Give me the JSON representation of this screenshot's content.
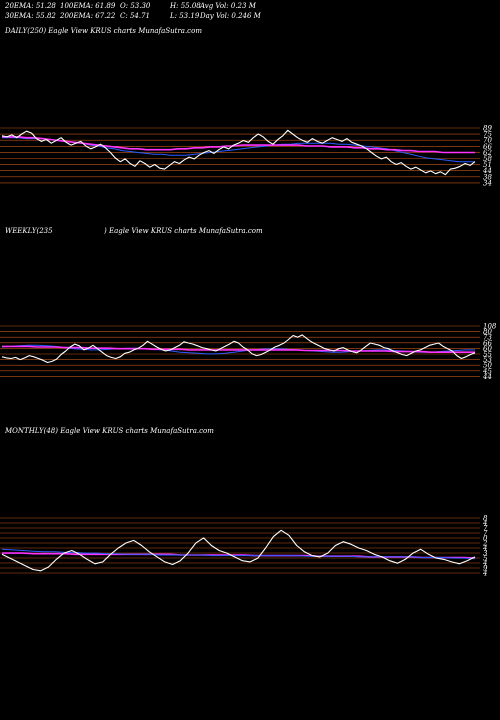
{
  "header": {
    "ema20": "20EMA: 51.28",
    "ema100": "100EMA: 61.89",
    "open": "O: 53.30",
    "high": "H: 55.08",
    "avg_vol": "Avg Vol: 0.23 M",
    "ema30": "30EMA: 55.82",
    "ema200": "200EMA: 67.22",
    "close": "C: 54.71",
    "low": "L: 53.19",
    "day_vol": "Day Vol: 0.246 M"
  },
  "panels": {
    "daily_title": "DAILY(250) Eagle  View  KRUS charts MunafaSutra.com",
    "weekly_title_left": "WEEKLY(235",
    "weekly_title_right": ") Eagle  View  KRUS charts MunafaSutra.com",
    "monthly_title": "MONTHLY(48) Eagle  View  KRUS charts MunafaSutra.com"
  },
  "colors": {
    "background": "#000000",
    "price": "#ffffff",
    "ema_blue": "#2a5cff",
    "ema_magenta": "#ff33ff",
    "ema_orange": "#d2691e",
    "level_line": "#c2541a"
  },
  "chart_data": [
    {
      "type": "line",
      "name": "daily",
      "tick_labels": [
        "89",
        "75",
        "70",
        "66",
        "62",
        "58",
        "51",
        "44",
        "38",
        "34"
      ],
      "ylim": [
        30,
        95
      ],
      "series": [
        {
          "name": "price",
          "values": [
            80,
            79,
            81,
            78,
            82,
            85,
            83,
            77,
            74,
            76,
            72,
            75,
            78,
            73,
            70,
            72,
            74,
            69,
            66,
            68,
            71,
            67,
            62,
            56,
            52,
            55,
            50,
            47,
            53,
            50,
            46,
            49,
            45,
            44,
            48,
            52,
            50,
            54,
            57,
            55,
            59,
            62,
            64,
            61,
            65,
            68,
            66,
            70,
            72,
            75,
            73,
            78,
            82,
            79,
            74,
            71,
            76,
            80,
            86,
            82,
            78,
            75,
            73,
            77,
            74,
            72,
            75,
            78,
            76,
            74,
            77,
            73,
            71,
            69,
            66,
            62,
            58,
            55,
            57,
            52,
            49,
            51,
            47,
            44,
            46,
            43,
            40,
            42,
            39,
            41,
            38,
            44,
            45,
            47,
            50,
            48,
            52
          ]
        },
        {
          "name": "ema20",
          "values": [
            78,
            78,
            78,
            77,
            77,
            77,
            76,
            75,
            74,
            73,
            72,
            70,
            69,
            67,
            66,
            64,
            63,
            62,
            61,
            60,
            60,
            59,
            59,
            59,
            60,
            61,
            62,
            63,
            64,
            65,
            66,
            67,
            68,
            69,
            70,
            71,
            71,
            72,
            72,
            72,
            72,
            72,
            71,
            71,
            70,
            69,
            68,
            67,
            66,
            64,
            62,
            60,
            58,
            56,
            55,
            54,
            53,
            52,
            52,
            52
          ]
        },
        {
          "name": "ema200",
          "values": [
            79,
            79,
            79,
            78,
            78,
            77,
            76,
            75,
            74,
            73,
            72,
            71,
            70,
            69,
            68,
            67,
            66,
            66,
            65,
            65,
            65,
            65,
            66,
            66,
            67,
            67,
            68,
            68,
            69,
            69,
            70,
            70,
            70,
            70,
            70,
            70,
            70,
            70,
            69,
            69,
            69,
            68,
            68,
            68,
            67,
            67,
            66,
            66,
            65,
            65,
            64,
            64,
            63,
            63,
            63,
            62,
            62,
            62,
            62,
            62
          ]
        }
      ]
    },
    {
      "type": "line",
      "name": "weekly",
      "tick_labels": [
        "108",
        "80",
        "73",
        "66",
        "60",
        "55",
        "53",
        "50",
        "45",
        "44"
      ],
      "ylim": [
        35,
        115
      ],
      "series": [
        {
          "name": "price",
          "values": [
            58,
            56,
            55,
            57,
            53,
            56,
            60,
            58,
            55,
            52,
            48,
            50,
            54,
            62,
            68,
            75,
            80,
            77,
            70,
            73,
            78,
            72,
            66,
            60,
            57,
            55,
            58,
            64,
            66,
            70,
            73,
            78,
            85,
            80,
            75,
            71,
            68,
            70,
            74,
            78,
            84,
            82,
            80,
            77,
            74,
            72,
            70,
            68,
            72,
            76,
            80,
            85,
            82,
            75,
            70,
            63,
            60,
            62,
            66,
            70,
            75,
            78,
            82,
            88,
            95,
            92,
            96,
            90,
            84,
            80,
            76,
            72,
            70,
            68,
            72,
            74,
            70,
            67,
            65,
            70,
            76,
            82,
            80,
            78,
            74,
            72,
            68,
            65,
            62,
            60,
            64,
            68,
            70,
            74,
            78,
            80,
            82,
            76,
            72,
            68,
            60,
            55,
            58,
            62,
            65
          ]
        },
        {
          "name": "ema_blue",
          "values": [
            75,
            76,
            77,
            78,
            78,
            77,
            76,
            74,
            72,
            71,
            70,
            70,
            71,
            72,
            73,
            73,
            72,
            71,
            70,
            68,
            66,
            65,
            64,
            63,
            63,
            64,
            66,
            68,
            70,
            71,
            72,
            72,
            71,
            70,
            69,
            68,
            67,
            66,
            66,
            67,
            68,
            69,
            70,
            70,
            69,
            68,
            67,
            66,
            66,
            67,
            68,
            69,
            70,
            70
          ]
        },
        {
          "name": "ema_magenta",
          "values": [
            76,
            76,
            76,
            76,
            75,
            75,
            75,
            74,
            74,
            74,
            73,
            73,
            73,
            72,
            72,
            72,
            72,
            71,
            71,
            71,
            71,
            70,
            70,
            70,
            70,
            70,
            70,
            70,
            70,
            70,
            70,
            70,
            70,
            70,
            69,
            69,
            69,
            69,
            69,
            68,
            68,
            68,
            68,
            68,
            67,
            67,
            67,
            67,
            66,
            66,
            66,
            66,
            66,
            66
          ]
        }
      ]
    },
    {
      "type": "line",
      "name": "monthly",
      "tick_labels": [
        "8",
        "4",
        "7",
        "7",
        "0",
        "2",
        "4",
        "3",
        "5",
        "4",
        "9",
        "4"
      ],
      "ylim": [
        20,
        140
      ],
      "series": [
        {
          "name": "price",
          "values": [
            70,
            64,
            58,
            52,
            46,
            44,
            50,
            62,
            72,
            76,
            70,
            62,
            55,
            58,
            70,
            80,
            88,
            92,
            84,
            74,
            66,
            58,
            54,
            60,
            72,
            88,
            96,
            84,
            76,
            72,
            66,
            60,
            58,
            64,
            80,
            98,
            108,
            100,
            84,
            74,
            68,
            66,
            72,
            84,
            90,
            86,
            80,
            76,
            70,
            66,
            60,
            56,
            62,
            72,
            78,
            70,
            64,
            62,
            58,
            55,
            60,
            66
          ]
        },
        {
          "name": "ema_magenta",
          "values": [
            72,
            72,
            72,
            71,
            71,
            71,
            71,
            70,
            70,
            70,
            70,
            70,
            70,
            70,
            70,
            70,
            70,
            69,
            69,
            69,
            69,
            69,
            69,
            69,
            68,
            68,
            68,
            68,
            68,
            68,
            67,
            67,
            67,
            67,
            67,
            66,
            66,
            66,
            66,
            66,
            65,
            65,
            65,
            65,
            65,
            64
          ]
        },
        {
          "name": "ema_blue",
          "values": [
            78,
            77,
            76,
            75,
            74,
            74,
            73,
            73,
            72,
            72,
            71,
            71,
            70,
            70,
            70,
            69,
            69,
            69,
            69,
            69,
            68,
            68,
            68,
            68,
            68,
            68,
            68,
            68,
            68,
            67,
            67,
            67,
            67,
            67,
            66,
            66,
            66,
            66,
            66,
            66,
            65,
            65,
            65,
            64,
            64,
            63
          ]
        }
      ]
    }
  ]
}
